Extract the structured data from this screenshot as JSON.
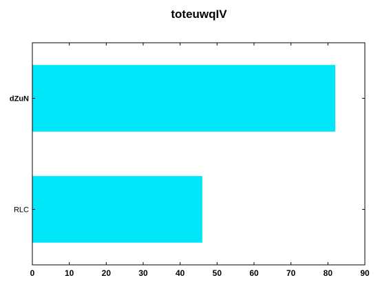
{
  "chart_data": {
    "type": "bar",
    "orientation": "horizontal",
    "title": "toteuwqIV",
    "categories": [
      "dZuN",
      "RLC"
    ],
    "values": [
      82,
      46
    ],
    "xlim": [
      0,
      90
    ],
    "xticks": [
      "0",
      "10",
      "20",
      "30",
      "40",
      "50",
      "60",
      "70",
      "80",
      "90"
    ],
    "xlabel": "",
    "ylabel": "",
    "grid": false,
    "bar_color": "#00e5f8",
    "emphasized_category": "dZuN"
  }
}
